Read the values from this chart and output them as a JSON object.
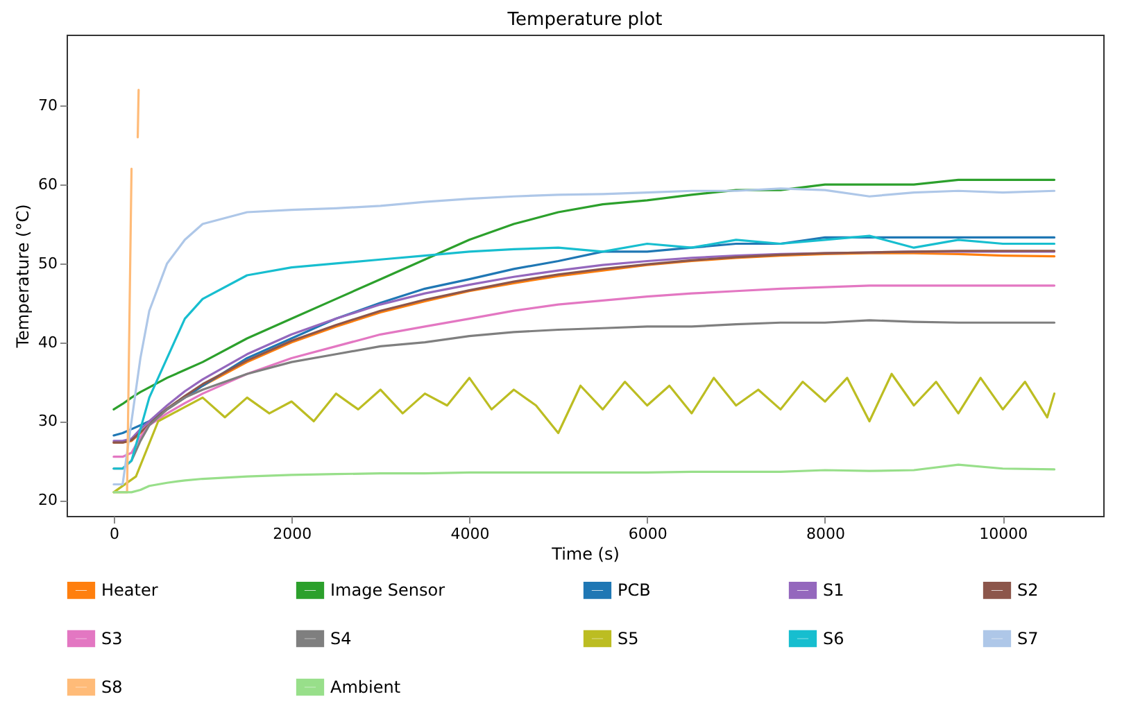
{
  "chart_data": {
    "type": "line",
    "title": "Temperature plot",
    "xlabel": "Time (s)",
    "ylabel": "Temperature (°C)",
    "xlim": [
      -530,
      11130
    ],
    "ylim": [
      18,
      79
    ],
    "xticks": [
      0,
      2000,
      4000,
      6000,
      8000,
      10000
    ],
    "yticks": [
      20,
      30,
      40,
      50,
      60,
      70
    ],
    "grid": false,
    "legend": "bottom",
    "x": [
      0,
      100,
      200,
      300,
      400,
      600,
      800,
      1000,
      1500,
      2000,
      2500,
      3000,
      3500,
      4000,
      4500,
      5000,
      5500,
      6000,
      6500,
      7000,
      7500,
      8000,
      8500,
      9000,
      9500,
      10000,
      10580
    ],
    "series": [
      {
        "name": "Heater",
        "color": "#ff7f0e",
        "values": [
          27.3,
          27.3,
          27.5,
          28.5,
          29.5,
          31.5,
          33,
          34.5,
          37.5,
          40,
          42,
          43.8,
          45.2,
          46.5,
          47.5,
          48.4,
          49.1,
          49.8,
          50.3,
          50.7,
          51,
          51.2,
          51.3,
          51.3,
          51.2,
          51,
          50.9
        ]
      },
      {
        "name": "Image Sensor",
        "color": "#2ca02c",
        "values": [
          31.5,
          32.2,
          33,
          33.7,
          34.3,
          35.5,
          36.5,
          37.5,
          40.5,
          43,
          45.5,
          48,
          50.5,
          53,
          55,
          56.5,
          57.5,
          58,
          58.7,
          59.3,
          59.3,
          60,
          60,
          60,
          60.6,
          60.6,
          60.6
        ]
      },
      {
        "name": "PCB",
        "color": "#1f77b4",
        "values": [
          28.2,
          28.5,
          29,
          29.5,
          30,
          31.5,
          33,
          34.5,
          38,
          40.5,
          43,
          45,
          46.8,
          48,
          49.3,
          50.3,
          51.5,
          51.5,
          52,
          52.5,
          52.5,
          53.3,
          53.3,
          53.3,
          53.3,
          53.3,
          53.3
        ]
      },
      {
        "name": "S1",
        "color": "#9467bd",
        "values": [
          27.5,
          27.5,
          27.8,
          29,
          30,
          32,
          33.8,
          35.3,
          38.5,
          41,
          43,
          44.8,
          46.2,
          47.3,
          48.3,
          49.1,
          49.8,
          50.3,
          50.7,
          51,
          51.2,
          51.3,
          51.4,
          51.5,
          51.5,
          51.5,
          51.5
        ]
      },
      {
        "name": "S2",
        "color": "#8c564b",
        "values": [
          27.3,
          27.3,
          27.6,
          28.6,
          29.6,
          31.6,
          33.2,
          34.7,
          37.7,
          40.2,
          42.2,
          44,
          45.4,
          46.6,
          47.7,
          48.6,
          49.3,
          49.9,
          50.4,
          50.8,
          51.1,
          51.3,
          51.4,
          51.5,
          51.6,
          51.6,
          51.6
        ]
      },
      {
        "name": "S3",
        "color": "#e377c2",
        "values": [
          25.5,
          25.5,
          26,
          28,
          29.5,
          31,
          32.3,
          33.5,
          36,
          38,
          39.5,
          41,
          42,
          43,
          44,
          44.8,
          45.3,
          45.8,
          46.2,
          46.5,
          46.8,
          47,
          47.2,
          47.2,
          47.2,
          47.2,
          47.2
        ]
      },
      {
        "name": "S4",
        "color": "#7f7f7f",
        "values": [
          24,
          24,
          25,
          27.5,
          29.5,
          31.5,
          33,
          34,
          36,
          37.5,
          38.5,
          39.5,
          40,
          40.8,
          41.3,
          41.6,
          41.8,
          42,
          42,
          42.3,
          42.5,
          42.5,
          42.8,
          42.6,
          42.5,
          42.5,
          42.5
        ]
      },
      {
        "name": "S5",
        "color": "#bcbd22",
        "x": [
          0,
          250,
          500,
          750,
          1000,
          1250,
          1500,
          1750,
          2000,
          2250,
          2500,
          2750,
          3000,
          3250,
          3500,
          3750,
          4000,
          4250,
          4500,
          4750,
          5000,
          5250,
          5500,
          5750,
          6000,
          6250,
          6500,
          6750,
          7000,
          7250,
          7500,
          7750,
          8000,
          8250,
          8500,
          8750,
          9000,
          9250,
          9500,
          9750,
          10000,
          10250,
          10500,
          10580
        ],
        "values": [
          21,
          23,
          30,
          31.5,
          33,
          30.5,
          33,
          31,
          32.5,
          30,
          33.5,
          31.5,
          34,
          31,
          33.5,
          32,
          35.5,
          31.5,
          34,
          32,
          28.5,
          34.5,
          31.5,
          35,
          32,
          34.5,
          31,
          35.5,
          32,
          34,
          31.5,
          35,
          32.5,
          35.5,
          30,
          36,
          32,
          35,
          31,
          35.5,
          31.5,
          35,
          30.5,
          33.5
        ]
      },
      {
        "name": "S6",
        "color": "#17becf",
        "values": [
          24,
          24,
          25,
          29,
          33,
          38,
          43,
          45.5,
          48.5,
          49.5,
          50,
          50.5,
          51,
          51.5,
          51.8,
          52,
          51.5,
          52.5,
          52,
          53,
          52.5,
          53,
          53.5,
          52,
          53,
          52.5,
          52.5
        ]
      },
      {
        "name": "S7",
        "color": "#aec7e8",
        "values": [
          22,
          22,
          30,
          38,
          44,
          50,
          53,
          55,
          56.5,
          56.8,
          57,
          57.3,
          57.8,
          58.2,
          58.5,
          58.7,
          58.8,
          59,
          59.2,
          59.2,
          59.5,
          59.3,
          58.5,
          59,
          59.2,
          59,
          59.2
        ]
      },
      {
        "name": "S8",
        "color": "#ffbb78",
        "x": [
          0,
          150,
          200,
          210,
          270,
          280
        ],
        "values": [
          21,
          21,
          62,
          null,
          66,
          72
        ]
      },
      {
        "name": "Ambient",
        "color": "#98df8a",
        "values": [
          21,
          21,
          21,
          21.3,
          21.8,
          22.2,
          22.5,
          22.7,
          23,
          23.2,
          23.3,
          23.4,
          23.4,
          23.5,
          23.5,
          23.5,
          23.5,
          23.5,
          23.6,
          23.6,
          23.6,
          23.8,
          23.7,
          23.8,
          24.5,
          24,
          23.9
        ]
      }
    ]
  }
}
